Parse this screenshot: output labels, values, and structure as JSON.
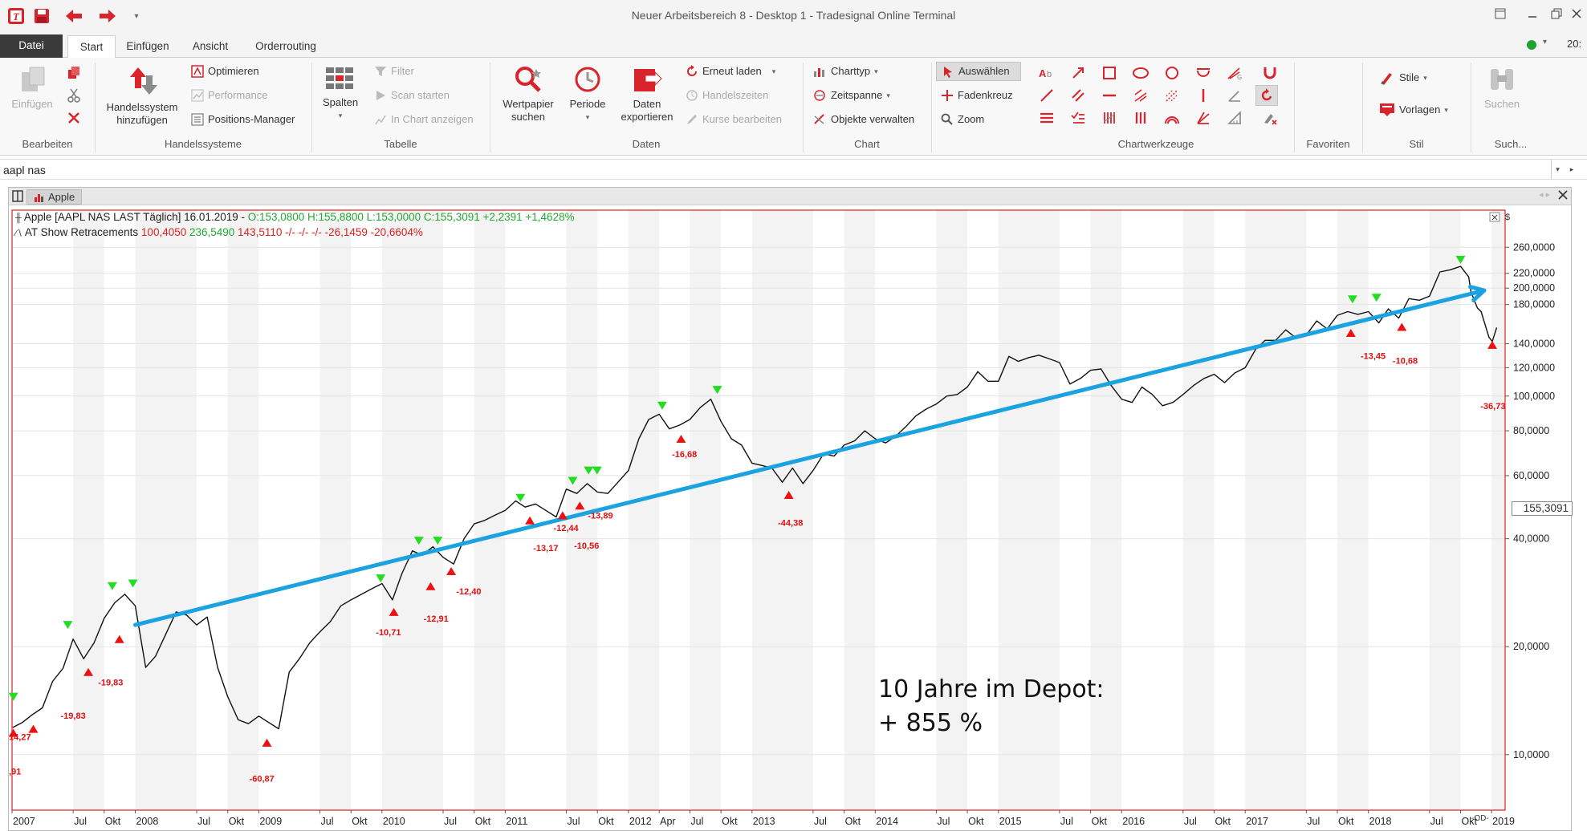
{
  "window": {
    "title": "Neuer Arbeitsbereich 8 - Desktop 1 - Tradesignal Online Terminal",
    "clock": "20:"
  },
  "menu": {
    "tabs": [
      "Datei",
      "Start",
      "Einfügen",
      "Ansicht",
      "Orderrouting"
    ]
  },
  "ribbon": {
    "bearbeiten": {
      "label": "Bearbeiten",
      "einfuegen": "Einfügen"
    },
    "handelssysteme": {
      "label": "Handelssysteme",
      "hs_button_l1": "Handelssystem",
      "hs_button_l2": "hinzufügen",
      "optimieren": "Optimieren",
      "performance": "Performance",
      "positions": "Positions-Manager"
    },
    "tabelle": {
      "label": "Tabelle",
      "spalten": "Spalten",
      "filter": "Filter",
      "scan": "Scan starten",
      "in_chart": "In Chart anzeigen"
    },
    "daten": {
      "label": "Daten",
      "wertpapier_l1": "Wertpapier",
      "wertpapier_l2": "suchen",
      "periode": "Periode",
      "exportieren_l1": "Daten",
      "exportieren_l2": "exportieren",
      "erneut": "Erneut laden",
      "handelszeiten": "Handelszeiten",
      "kurse": "Kurse bearbeiten"
    },
    "chart": {
      "label": "Chart",
      "charttyp": "Charttyp",
      "zeitspanne": "Zeitspanne",
      "objekte": "Objekte verwalten"
    },
    "chartwerkzeuge": {
      "label": "Chartwerkzeuge",
      "auswaehlen": "Auswählen",
      "fadenkreuz": "Fadenkreuz",
      "zoom": "Zoom"
    },
    "favoriten": {
      "label": "Favoriten"
    },
    "stil": {
      "label": "Stil",
      "stile": "Stile",
      "vorlagen": "Vorlagen"
    },
    "suche": {
      "label": "Such...",
      "suchen": "Suchen"
    }
  },
  "search": {
    "value": "aapl nas"
  },
  "chart_window": {
    "tab_label": "Apple"
  },
  "legend": {
    "line1_name": "Apple [AAPL NAS LAST Täglich] 16.01.2019 - ",
    "line1_ohl": "O:153,0800 H:155,8800 L:153,0000 ",
    "line1_close": "C:155,3091 +2,2391 +1,4628%",
    "line2_name": "AT Show Retracements ",
    "line2_v1": "100,4050 ",
    "line2_v2": "236,5490 ",
    "line2_v3": "143,5110 -/- -/- -/- -26,1459 -20,6604%"
  },
  "annotation": {
    "line1": "10 Jahre im Depot:",
    "line2": "+ 855 %"
  },
  "current_price": "155,3091",
  "colors": {
    "accent_red": "#d9242b",
    "up_marker": "#22dd22",
    "down_marker": "#ee1111",
    "trend_line": "#1aa3e0",
    "price_line": "#111111"
  },
  "chart_data": {
    "type": "line",
    "title": "Apple [AAPL NAS LAST Täglich]",
    "y_scale": "log",
    "ylim": [
      7,
      330
    ],
    "ylabel": "$",
    "y_ticks": [
      {
        "v": 260,
        "label": "260,0000"
      },
      {
        "v": 220,
        "label": "220,0000"
      },
      {
        "v": 200,
        "label": "200,0000"
      },
      {
        "v": 180,
        "label": "180,0000"
      },
      {
        "v": 140,
        "label": "140,0000"
      },
      {
        "v": 120,
        "label": "120,0000"
      },
      {
        "v": 100,
        "label": "100,0000"
      },
      {
        "v": 80,
        "label": "80,0000"
      },
      {
        "v": 60,
        "label": "60,0000"
      },
      {
        "v": 40,
        "label": "40,0000"
      },
      {
        "v": 20,
        "label": "20,0000"
      },
      {
        "v": 10,
        "label": "10,0000"
      }
    ],
    "xlim": [
      "2007-01-01",
      "2019-02-10"
    ],
    "x_ticks": [
      {
        "d": "2007-01-01",
        "label": "2007"
      },
      {
        "d": "2007-07-01",
        "label": "Jul"
      },
      {
        "d": "2007-10-01",
        "label": "Okt"
      },
      {
        "d": "2008-01-01",
        "label": "2008"
      },
      {
        "d": "2008-07-01",
        "label": "Jul"
      },
      {
        "d": "2008-10-01",
        "label": "Okt"
      },
      {
        "d": "2009-01-01",
        "label": "2009"
      },
      {
        "d": "2009-07-01",
        "label": "Jul"
      },
      {
        "d": "2009-10-01",
        "label": "Okt"
      },
      {
        "d": "2010-01-01",
        "label": "2010"
      },
      {
        "d": "2010-07-01",
        "label": "Jul"
      },
      {
        "d": "2010-10-01",
        "label": "Okt"
      },
      {
        "d": "2011-01-01",
        "label": "2011"
      },
      {
        "d": "2011-07-01",
        "label": "Jul"
      },
      {
        "d": "2011-10-01",
        "label": "Okt"
      },
      {
        "d": "2012-01-01",
        "label": "2012"
      },
      {
        "d": "2012-04-01",
        "label": "Apr"
      },
      {
        "d": "2012-07-01",
        "label": "Jul"
      },
      {
        "d": "2012-10-01",
        "label": "Okt"
      },
      {
        "d": "2013-01-01",
        "label": "2013"
      },
      {
        "d": "2013-07-01",
        "label": "Jul"
      },
      {
        "d": "2013-10-01",
        "label": "Okt"
      },
      {
        "d": "2014-01-01",
        "label": "2014"
      },
      {
        "d": "2014-07-01",
        "label": "Jul"
      },
      {
        "d": "2014-10-01",
        "label": "Okt"
      },
      {
        "d": "2015-01-01",
        "label": "2015"
      },
      {
        "d": "2015-07-01",
        "label": "Jul"
      },
      {
        "d": "2015-10-01",
        "label": "Okt"
      },
      {
        "d": "2016-01-01",
        "label": "2016"
      },
      {
        "d": "2016-07-01",
        "label": "Jul"
      },
      {
        "d": "2016-10-01",
        "label": "Okt"
      },
      {
        "d": "2017-01-01",
        "label": "2017"
      },
      {
        "d": "2017-07-01",
        "label": "Jul"
      },
      {
        "d": "2017-10-01",
        "label": "Okt"
      },
      {
        "d": "2018-01-01",
        "label": "2018"
      },
      {
        "d": "2018-07-01",
        "label": "Jul"
      },
      {
        "d": "2018-10-01",
        "label": "Okt"
      },
      {
        "d": "2019-01-01",
        "label": "2019"
      }
    ],
    "series": [
      {
        "values": [
          [
            "2007-01-03",
            11.9
          ],
          [
            "2007-02-01",
            12.3
          ],
          [
            "2007-03-01",
            12.9
          ],
          [
            "2007-04-01",
            13.5
          ],
          [
            "2007-05-01",
            16.0
          ],
          [
            "2007-06-01",
            17.4
          ],
          [
            "2007-07-01",
            21.0
          ],
          [
            "2007-08-01",
            18.5
          ],
          [
            "2007-09-01",
            20.5
          ],
          [
            "2007-10-01",
            24.0
          ],
          [
            "2007-11-01",
            26.5
          ],
          [
            "2007-12-01",
            28.0
          ],
          [
            "2008-01-01",
            26.0
          ],
          [
            "2008-02-01",
            17.5
          ],
          [
            "2008-03-01",
            18.8
          ],
          [
            "2008-05-01",
            25.0
          ],
          [
            "2008-06-01",
            24.5
          ],
          [
            "2008-07-01",
            23.0
          ],
          [
            "2008-08-01",
            24.2
          ],
          [
            "2008-09-01",
            17.5
          ],
          [
            "2008-10-01",
            14.5
          ],
          [
            "2008-11-01",
            12.5
          ],
          [
            "2008-12-01",
            12.2
          ],
          [
            "2009-01-01",
            12.8
          ],
          [
            "2009-03-01",
            11.8
          ],
          [
            "2009-04-01",
            17.0
          ],
          [
            "2009-05-01",
            18.5
          ],
          [
            "2009-06-01",
            20.5
          ],
          [
            "2009-07-01",
            22.0
          ],
          [
            "2009-08-01",
            23.5
          ],
          [
            "2009-09-01",
            26.0
          ],
          [
            "2009-10-01",
            27.0
          ],
          [
            "2009-12-01",
            29.0
          ],
          [
            "2010-01-01",
            30.0
          ],
          [
            "2010-02-01",
            27.0
          ],
          [
            "2010-03-01",
            32.0
          ],
          [
            "2010-04-01",
            37.0
          ],
          [
            "2010-05-01",
            36.0
          ],
          [
            "2010-06-01",
            38.0
          ],
          [
            "2010-07-01",
            35.5
          ],
          [
            "2010-08-01",
            34.0
          ],
          [
            "2010-09-01",
            40.0
          ],
          [
            "2010-10-01",
            44.0
          ],
          [
            "2010-11-01",
            45.0
          ],
          [
            "2010-12-01",
            46.5
          ],
          [
            "2011-01-01",
            48.0
          ],
          [
            "2011-02-01",
            51.0
          ],
          [
            "2011-03-01",
            49.0
          ],
          [
            "2011-04-01",
            50.0
          ],
          [
            "2011-05-01",
            48.0
          ],
          [
            "2011-06-01",
            46.0
          ],
          [
            "2011-07-01",
            55.0
          ],
          [
            "2011-08-01",
            53.5
          ],
          [
            "2011-09-01",
            57.0
          ],
          [
            "2011-10-01",
            54.0
          ],
          [
            "2011-11-01",
            53.5
          ],
          [
            "2011-12-01",
            57.5
          ],
          [
            "2012-01-01",
            62.0
          ],
          [
            "2012-02-01",
            76.0
          ],
          [
            "2012-03-01",
            86.0
          ],
          [
            "2012-04-01",
            89.0
          ],
          [
            "2012-05-01",
            81.0
          ],
          [
            "2012-06-01",
            83.0
          ],
          [
            "2012-07-01",
            86.0
          ],
          [
            "2012-08-01",
            93.0
          ],
          [
            "2012-09-01",
            98.0
          ],
          [
            "2012-10-01",
            85.0
          ],
          [
            "2012-11-01",
            76.0
          ],
          [
            "2012-12-01",
            73.0
          ],
          [
            "2013-01-01",
            65.0
          ],
          [
            "2013-02-01",
            64.0
          ],
          [
            "2013-03-01",
            63.0
          ],
          [
            "2013-04-01",
            57.5
          ],
          [
            "2013-05-01",
            63.0
          ],
          [
            "2013-06-01",
            57.0
          ],
          [
            "2013-07-01",
            62.0
          ],
          [
            "2013-08-01",
            69.0
          ],
          [
            "2013-09-01",
            68.0
          ],
          [
            "2013-10-01",
            73.0
          ],
          [
            "2013-11-01",
            75.0
          ],
          [
            "2013-12-01",
            80.0
          ],
          [
            "2014-01-01",
            76.0
          ],
          [
            "2014-02-01",
            74.0
          ],
          [
            "2014-03-01",
            77.0
          ],
          [
            "2014-04-01",
            82.0
          ],
          [
            "2014-05-01",
            88.0
          ],
          [
            "2014-06-01",
            92.0
          ],
          [
            "2014-07-01",
            95.0
          ],
          [
            "2014-08-01",
            100.0
          ],
          [
            "2014-09-01",
            101.0
          ],
          [
            "2014-10-01",
            106.0
          ],
          [
            "2014-11-01",
            117.0
          ],
          [
            "2014-12-01",
            110.0
          ],
          [
            "2015-01-01",
            110.0
          ],
          [
            "2015-02-01",
            129.0
          ],
          [
            "2015-03-01",
            125.0
          ],
          [
            "2015-04-01",
            128.0
          ],
          [
            "2015-05-01",
            130.0
          ],
          [
            "2015-06-01",
            127.0
          ],
          [
            "2015-07-01",
            124.0
          ],
          [
            "2015-08-01",
            108.0
          ],
          [
            "2015-09-01",
            112.0
          ],
          [
            "2015-10-01",
            118.0
          ],
          [
            "2015-11-01",
            119.0
          ],
          [
            "2015-12-01",
            107.0
          ],
          [
            "2016-01-01",
            98.0
          ],
          [
            "2016-02-01",
            96.0
          ],
          [
            "2016-03-01",
            106.0
          ],
          [
            "2016-04-01",
            101.0
          ],
          [
            "2016-05-01",
            94.0
          ],
          [
            "2016-06-01",
            96.0
          ],
          [
            "2016-07-01",
            101.0
          ],
          [
            "2016-08-01",
            107.0
          ],
          [
            "2016-09-01",
            112.0
          ],
          [
            "2016-10-01",
            115.0
          ],
          [
            "2016-11-01",
            109.0
          ],
          [
            "2016-12-01",
            116.0
          ],
          [
            "2017-01-01",
            120.0
          ],
          [
            "2017-02-01",
            135.0
          ],
          [
            "2017-03-01",
            143.0
          ],
          [
            "2017-04-01",
            143.0
          ],
          [
            "2017-05-01",
            153.0
          ],
          [
            "2017-06-01",
            145.0
          ],
          [
            "2017-07-01",
            148.0
          ],
          [
            "2017-08-01",
            162.0
          ],
          [
            "2017-09-01",
            154.0
          ],
          [
            "2017-10-01",
            168.0
          ],
          [
            "2017-11-01",
            172.0
          ],
          [
            "2017-12-01",
            169.0
          ],
          [
            "2018-01-01",
            172.0
          ],
          [
            "2018-02-01",
            160.0
          ],
          [
            "2018-03-01",
            175.0
          ],
          [
            "2018-04-01",
            165.0
          ],
          [
            "2018-05-01",
            187.0
          ],
          [
            "2018-06-01",
            185.0
          ],
          [
            "2018-07-01",
            190.0
          ],
          [
            "2018-08-01",
            222.0
          ],
          [
            "2018-09-01",
            225.0
          ],
          [
            "2018-10-01",
            230.0
          ],
          [
            "2018-10-25",
            215.0
          ],
          [
            "2018-11-01",
            195.0
          ],
          [
            "2018-11-20",
            176.0
          ],
          [
            "2018-12-01",
            172.0
          ],
          [
            "2018-12-24",
            146.0
          ],
          [
            "2019-01-03",
            142.0
          ],
          [
            "2019-01-16",
            155.3
          ]
        ]
      }
    ],
    "trend_line": [
      [
        "2008-01-01",
        23.0
      ],
      [
        "2018-12-10",
        197.0
      ]
    ],
    "markers_up": [
      [
        "2007-01-05",
        14.5
      ],
      [
        "2007-06-15",
        23.0
      ],
      [
        "2007-10-25",
        29.5
      ],
      [
        "2007-12-25",
        30.0
      ],
      [
        "2009-12-28",
        31.0
      ],
      [
        "2010-04-20",
        39.5
      ],
      [
        "2010-06-15",
        39.5
      ],
      [
        "2011-02-15",
        52.0
      ],
      [
        "2011-07-20",
        58.0
      ],
      [
        "2011-09-05",
        62.0
      ],
      [
        "2011-09-30",
        62.0
      ],
      [
        "2012-04-10",
        94.0
      ],
      [
        "2012-09-20",
        104.0
      ],
      [
        "2017-11-15",
        186.0
      ],
      [
        "2018-01-25",
        188.0
      ],
      [
        "2018-10-01",
        240.0
      ]
    ],
    "markers_down": [
      [
        "2007-01-05",
        11.5
      ],
      [
        "2007-03-05",
        11.8
      ],
      [
        "2007-08-15",
        17.0
      ],
      [
        "2007-11-15",
        21.0
      ],
      [
        "2009-01-25",
        10.8
      ],
      [
        "2010-02-05",
        25.0
      ],
      [
        "2010-05-25",
        29.5
      ],
      [
        "2010-07-25",
        32.5
      ],
      [
        "2011-03-15",
        45.0
      ],
      [
        "2011-06-20",
        46.5
      ],
      [
        "2011-08-10",
        49.5
      ],
      [
        "2012-06-05",
        76.0
      ],
      [
        "2013-04-20",
        53.0
      ],
      [
        "2017-11-10",
        150.0
      ],
      [
        "2018-04-10",
        156.0
      ],
      [
        "2019-01-03",
        139.0
      ]
    ],
    "labels": [
      {
        "d": "2007-01-20",
        "v": 11.0,
        "t": "-14,27"
      },
      {
        "d": "2007-01-10",
        "v": 8.8,
        "t": ",91"
      },
      {
        "d": "2007-07-01",
        "v": 12.6,
        "t": "-19,83"
      },
      {
        "d": "2007-10-20",
        "v": 15.6,
        "t": "-19,83"
      },
      {
        "d": "2009-01-10",
        "v": 8.4,
        "t": "-60,87"
      },
      {
        "d": "2010-01-20",
        "v": 21.5,
        "t": "-10,71"
      },
      {
        "d": "2010-06-10",
        "v": 23.5,
        "t": "-12,91"
      },
      {
        "d": "2010-09-15",
        "v": 28.0,
        "t": "-12,40"
      },
      {
        "d": "2011-05-01",
        "v": 37.0,
        "t": "-13,17"
      },
      {
        "d": "2011-06-30",
        "v": 42.0,
        "t": "-12,44"
      },
      {
        "d": "2011-08-30",
        "v": 37.5,
        "t": "-10,56"
      },
      {
        "d": "2011-10-10",
        "v": 45.5,
        "t": "-13,89"
      },
      {
        "d": "2012-06-15",
        "v": 67.5,
        "t": "-16,68"
      },
      {
        "d": "2013-04-25",
        "v": 43.5,
        "t": "-44,38"
      },
      {
        "d": "2018-01-15",
        "v": 127.0,
        "t": "-13,45"
      },
      {
        "d": "2018-04-20",
        "v": 123.0,
        "t": "-10,68"
      },
      {
        "d": "2019-01-05",
        "v": 92.0,
        "t": "-36,73"
      }
    ]
  }
}
